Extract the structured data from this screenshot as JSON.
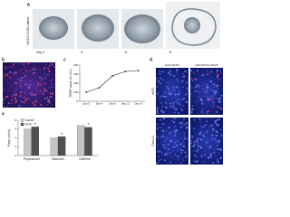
{
  "panels": {
    "a": {
      "letter": "a",
      "side_label": "hiOCS in 3D culture",
      "days": [
        "Day 1",
        "3",
        "6",
        "8"
      ]
    },
    "b": {
      "letter": "b"
    },
    "c": {
      "letter": "c"
    },
    "d": {
      "letter": "d",
      "columns": [
        "HGK1/DAPI",
        "pMCAM/VIL1/DAPI"
      ],
      "rows": [
        "hiOC",
        "Caco-2"
      ]
    },
    "e": {
      "letter": "e"
    }
  },
  "chart_data": [
    {
      "type": "line",
      "y_label": "TEER value (Ω·cm²)",
      "categories": [
        "Day 0",
        "Day 4",
        "Day 8",
        "Day 12",
        "Day 16"
      ],
      "values": [
        100,
        150,
        280,
        330,
        340
      ],
      "color": "#222222",
      "ylim": [
        0,
        400
      ],
      "yticks": [
        0,
        100,
        200,
        300,
        400
      ]
    },
    {
      "type": "bar",
      "y_label": "Papp (cm/s)",
      "categories": [
        "Propranolol",
        "Mannitol",
        "Caffeine"
      ],
      "series": [
        {
          "name": "Caco2",
          "color": "#c4c4c4",
          "values": [
            6,
            4,
            6.8
          ]
        },
        {
          "name": "hiOC",
          "color": "#505050",
          "values": [
            6.5,
            4.3,
            6.4
          ],
          "significance": [
            "*",
            "*",
            "*"
          ]
        }
      ],
      "ylim": [
        0,
        8
      ],
      "yticks": [
        0,
        2,
        4,
        6,
        8
      ],
      "legend": "top-left"
    }
  ]
}
